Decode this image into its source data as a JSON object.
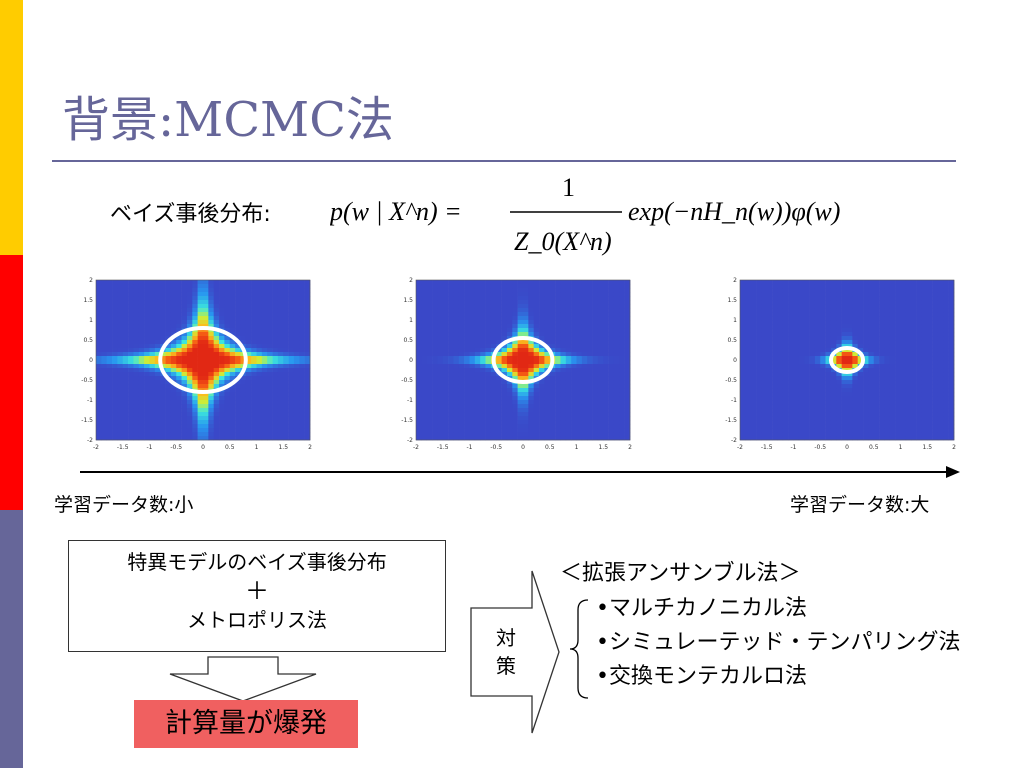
{
  "slide": {
    "title": "背景:MCMC法",
    "posterior_label": "ベイズ事後分布:",
    "formula": {
      "lhs": "p(w | X^n) =",
      "numerator": "1",
      "denominator": "Z_0(X^n)",
      "rhs": "exp(−nH_n(w))φ(w)"
    },
    "data_small_label": "学習データ数:小",
    "data_large_label": "学習データ数:大",
    "method_box": {
      "line1": "特異モデルのベイズ事後分布",
      "plus": "＋",
      "line2": "メトロポリス法"
    },
    "result_label": "計算量が爆発",
    "countermeasure_label": "対策",
    "alternatives_title": "＜拡張アンサンブル法＞",
    "alternatives": [
      "•マルチカノニカル法",
      "•シミュレーテッド・テンパリング法",
      "•交換モンテカルロ法"
    ],
    "colors": {
      "accent": "#666699",
      "side_yellow": "#ffcc00",
      "side_red": "#ff0000",
      "result_bg": "#f06060"
    }
  },
  "chart_data": [
    {
      "type": "heatmap",
      "xlim": [
        -2,
        2
      ],
      "ylim": [
        -2,
        2
      ],
      "x_ticks": [
        "-2",
        "-1.5",
        "-1",
        "-0.5",
        "0",
        "0.5",
        "1",
        "1.5",
        "2"
      ],
      "y_ticks": [
        "2",
        "1.5",
        "1",
        "0.5",
        "0",
        "-0.5",
        "-1",
        "-1.5",
        "-2"
      ],
      "spread": 1.0,
      "marked_radius": 0.8
    },
    {
      "type": "heatmap",
      "xlim": [
        -2,
        2
      ],
      "ylim": [
        -2,
        2
      ],
      "x_ticks": [
        "-2",
        "-1.5",
        "-1",
        "-0.5",
        "0",
        "0.5",
        "1",
        "1.5",
        "2"
      ],
      "y_ticks": [
        "2",
        "1.5",
        "1",
        "0.5",
        "0",
        "-0.5",
        "-1",
        "-1.5",
        "-2"
      ],
      "spread": 0.55,
      "marked_radius": 0.55
    },
    {
      "type": "heatmap",
      "xlim": [
        -2,
        2
      ],
      "ylim": [
        -2,
        2
      ],
      "x_ticks": [
        "-2",
        "-1.5",
        "-1",
        "-0.5",
        "0",
        "0.5",
        "1",
        "1.5",
        "2"
      ],
      "y_ticks": [
        "2",
        "1.5",
        "1",
        "0.5",
        "0",
        "-0.5",
        "-1",
        "-1.5",
        "-2"
      ],
      "spread": 0.25,
      "marked_radius": 0.3
    }
  ]
}
